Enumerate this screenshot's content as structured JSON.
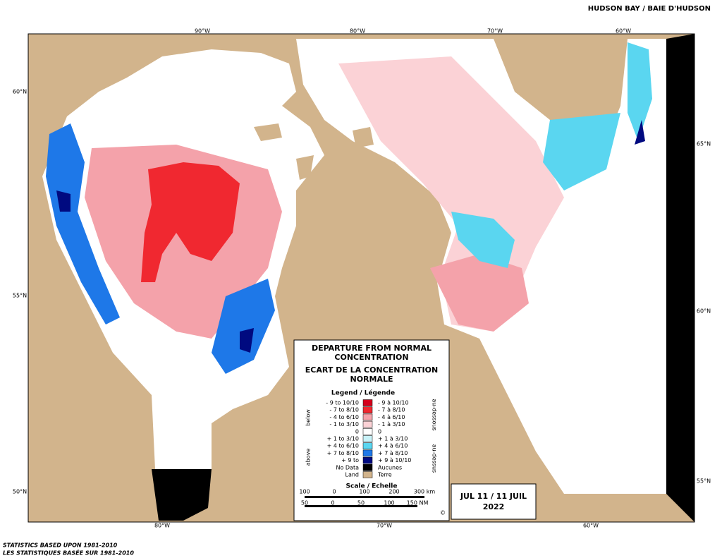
{
  "header": {
    "title": "HUDSON BAY / BAIE D'HUDSON"
  },
  "map": {
    "top_longitudes": [
      "90°W",
      "80°W",
      "70°W",
      "60°W"
    ],
    "bottom_longitudes": [
      "80°W",
      "70°W",
      "60°W"
    ],
    "left_latitudes": [
      "60°N",
      "55°N",
      "50°N"
    ],
    "right_latitudes": [
      "65°N",
      "60°N",
      "55°N"
    ]
  },
  "legend": {
    "title_en": [
      "DEPARTURE FROM NORMAL",
      "CONCENTRATION"
    ],
    "title_fr": [
      "ECART DE LA CONCENTRATION",
      "NORMALE"
    ],
    "subtitle": "Legend / Légende",
    "below": "below",
    "above": "above",
    "below_fr": "au-dessous",
    "above_fr": "au-dessus",
    "items": [
      {
        "en": "- 9 to 10/10",
        "fr": "- 9 à 10/10",
        "color": "#d4001c"
      },
      {
        "en": "- 7 to 8/10",
        "fr": "- 7 à 8/10",
        "color": "#f02830"
      },
      {
        "en": "- 4 to 6/10",
        "fr": "- 4 à 6/10",
        "color": "#f4a2aa"
      },
      {
        "en": "- 1 to 3/10",
        "fr": "- 1 à 3/10",
        "color": "#fbd2d6"
      },
      {
        "en": "0",
        "fr": "0",
        "color": "#ffffff"
      },
      {
        "en": "+ 1 to 3/10",
        "fr": "+ 1 à 3/10",
        "color": "#c8f2f8"
      },
      {
        "en": "+ 4 to 6/10",
        "fr": "+ 4 à 6/10",
        "color": "#5ad6f0"
      },
      {
        "en": "+ 7 to 8/10",
        "fr": "+ 7 à 8/10",
        "color": "#1e78e8"
      },
      {
        "en": "+ 9 to",
        "fr": "+ 9 à 10/10",
        "color": "#000a80"
      },
      {
        "en": "No Data",
        "fr": "Aucunes",
        "color": "#000000"
      },
      {
        "en": "Land",
        "fr": "Terre",
        "color": "#d2b48c"
      }
    ],
    "scale_title": "Scale / Echelle",
    "km_labels": [
      "100",
      "0",
      "100",
      "200",
      "300 km"
    ],
    "nm_labels": [
      "50",
      "0",
      "50",
      "100",
      "150 NM"
    ],
    "copyright": "©"
  },
  "date": {
    "line1": "JUL 11 / 11 JUIL",
    "year": "2022"
  },
  "footer": [
    "STATISTICS BASED UPON 1981-2010",
    "LES STATISTIQUES BASÉE SUR 1981-2010"
  ]
}
